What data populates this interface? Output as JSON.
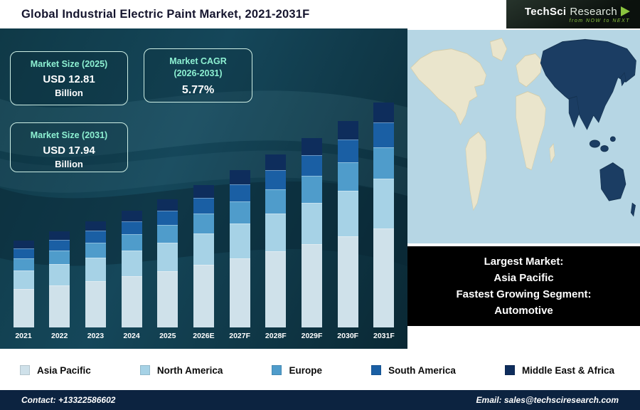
{
  "header": {
    "title": "Global Industrial Electric Paint Market, 2021-2031F",
    "logo": {
      "name_part1": "TechSci",
      "name_part2": "Research",
      "tagline": "from NOW to NEXT"
    }
  },
  "cards": {
    "size2025": {
      "label": "Market Size (2025)",
      "value": "USD 12.81",
      "unit": "Billion"
    },
    "cagr": {
      "label_line1": "Market CAGR",
      "label_line2": "(2026-2031)",
      "value": "5.77%"
    },
    "size2031": {
      "label": "Market Size (2031)",
      "value": "USD 17.94",
      "unit": "Billion"
    }
  },
  "chart_data": {
    "type": "bar",
    "stacked": true,
    "title": "Global Industrial Electric Paint Market, 2021-2031F",
    "unit": "USD Billion",
    "categories": [
      "2021",
      "2022",
      "2023",
      "2024",
      "2025",
      "2026E",
      "2027F",
      "2028F",
      "2029F",
      "2030F",
      "2031F"
    ],
    "totals": [
      10.6,
      11.1,
      11.62,
      12.2,
      12.81,
      13.55,
      14.33,
      15.16,
      16.03,
      16.96,
      17.94
    ],
    "series": [
      {
        "name": "Asia Pacific",
        "color": "#cfe1ea",
        "values": [
          4.66,
          4.88,
          5.11,
          5.37,
          5.64,
          5.96,
          6.31,
          6.67,
          7.05,
          7.46,
          7.89
        ]
      },
      {
        "name": "North America",
        "color": "#a6d2e6",
        "values": [
          2.33,
          2.44,
          2.56,
          2.68,
          2.82,
          2.98,
          3.15,
          3.34,
          3.53,
          3.73,
          3.95
        ]
      },
      {
        "name": "Europe",
        "color": "#4f9ccb",
        "values": [
          1.48,
          1.55,
          1.63,
          1.71,
          1.79,
          1.9,
          2.01,
          2.12,
          2.24,
          2.37,
          2.51
        ]
      },
      {
        "name": "South America",
        "color": "#1a5fa4",
        "values": [
          1.17,
          1.22,
          1.28,
          1.34,
          1.41,
          1.49,
          1.58,
          1.67,
          1.76,
          1.87,
          1.97
        ]
      },
      {
        "name": "Middle East & Africa",
        "color": "#0e2d5c",
        "values": [
          0.95,
          1.0,
          1.05,
          1.1,
          1.15,
          1.22,
          1.29,
          1.36,
          1.44,
          1.53,
          1.61
        ]
      }
    ],
    "annotations": [
      "Market Size (2025): USD 12.81 Billion",
      "Market CAGR (2026-2031): 5.77%",
      "Market Size (2031): USD 17.94 Billion"
    ],
    "legend_position": "bottom",
    "grid": false
  },
  "map_note": {
    "line1": "Largest Market:",
    "line2": "Asia Pacific",
    "line3": "Fastest Growing Segment:",
    "line4": "Automotive"
  },
  "footer": {
    "contact": "Contact: +13322586602",
    "email": "Email: sales@techsciresearch.com"
  }
}
